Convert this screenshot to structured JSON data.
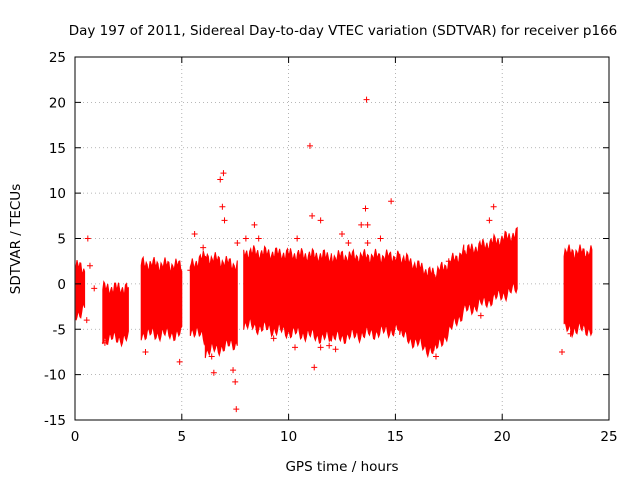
{
  "chart_data": {
    "type": "scatter",
    "title": "Day 197 of 2011, Sidereal Day-to-day VTEC variation (SDTVAR) for receiver p166",
    "xlabel": "GPS time / hours",
    "ylabel": "SDTVAR / TECUs",
    "xlim": [
      0,
      25
    ],
    "ylim": [
      -15,
      25
    ],
    "xticks": [
      0,
      5,
      10,
      15,
      20,
      25
    ],
    "yticks": [
      -15,
      -10,
      -5,
      0,
      5,
      10,
      15,
      20,
      25
    ],
    "xtick_labels": [
      "0",
      "5",
      "10",
      "15",
      "20",
      "25"
    ],
    "ytick_labels": [
      "-15",
      "-10",
      "-5",
      "0",
      "5",
      "10",
      "15",
      "20",
      "25"
    ],
    "grid": true,
    "marker": "+",
    "color": "#ff0000",
    "series": [
      {
        "name": "SDTVAR",
        "bands": [
          {
            "x": [
              0.05,
              0.45
            ],
            "low": [
              -3.5,
              -2.5
            ],
            "high": [
              2.0,
              1.5
            ]
          },
          {
            "x": [
              1.3,
              2.5
            ],
            "low": [
              -6.0,
              -6.0
            ],
            "high": [
              -0.5,
              -0.5
            ]
          },
          {
            "x": [
              3.1,
              5.0
            ],
            "low": [
              -5.5,
              -5.5
            ],
            "high": [
              2.2,
              2.0
            ]
          },
          {
            "x": [
              5.4,
              6.1
            ],
            "low": [
              -5.0,
              -6.0
            ],
            "high": [
              2.0,
              3.0
            ]
          },
          {
            "x": [
              6.1,
              7.6
            ],
            "low": [
              -7.5,
              -6.5
            ],
            "high": [
              3.0,
              2.0
            ]
          },
          {
            "x": [
              7.9,
              12.0
            ],
            "low": [
              -4.5,
              -6.0
            ],
            "high": [
              3.5,
              3.0
            ]
          },
          {
            "x": [
              12.0,
              15.2
            ],
            "low": [
              -6.0,
              -5.0
            ],
            "high": [
              3.0,
              3.0
            ]
          },
          {
            "x": [
              15.2,
              16.8
            ],
            "low": [
              -5.5,
              -7.5
            ],
            "high": [
              3.0,
              1.0
            ]
          },
          {
            "x": [
              16.8,
              18.2
            ],
            "low": [
              -7.5,
              -3.0
            ],
            "high": [
              1.0,
              3.5
            ]
          },
          {
            "x": [
              18.2,
              20.7
            ],
            "low": [
              -3.0,
              -0.5
            ],
            "high": [
              3.5,
              5.5
            ]
          },
          {
            "x": [
              22.9,
              24.2
            ],
            "low": [
              -5.0,
              -5.0
            ],
            "high": [
              3.5,
              3.5
            ]
          }
        ],
        "outliers": [
          {
            "x": 0.6,
            "y": 5.0
          },
          {
            "x": 0.7,
            "y": 2.0
          },
          {
            "x": 0.9,
            "y": -0.5
          },
          {
            "x": 0.55,
            "y": -4.0
          },
          {
            "x": 1.4,
            "y": -6.5
          },
          {
            "x": 3.3,
            "y": -7.5
          },
          {
            "x": 4.9,
            "y": -8.6
          },
          {
            "x": 5.4,
            "y": 1.5
          },
          {
            "x": 5.6,
            "y": 5.5
          },
          {
            "x": 6.0,
            "y": 4.0
          },
          {
            "x": 6.4,
            "y": -8.0
          },
          {
            "x": 6.5,
            "y": -9.8
          },
          {
            "x": 6.8,
            "y": 11.5
          },
          {
            "x": 6.95,
            "y": 12.2
          },
          {
            "x": 6.9,
            "y": 8.5
          },
          {
            "x": 7.0,
            "y": 7.0
          },
          {
            "x": 7.4,
            "y": -9.5
          },
          {
            "x": 7.5,
            "y": -10.8
          },
          {
            "x": 7.55,
            "y": -13.8
          },
          {
            "x": 7.6,
            "y": 4.5
          },
          {
            "x": 8.0,
            "y": 5.0
          },
          {
            "x": 8.4,
            "y": 6.5
          },
          {
            "x": 8.6,
            "y": 5.0
          },
          {
            "x": 9.3,
            "y": -6.0
          },
          {
            "x": 10.4,
            "y": 5.0
          },
          {
            "x": 10.3,
            "y": -7.0
          },
          {
            "x": 11.0,
            "y": 15.2
          },
          {
            "x": 11.1,
            "y": 7.5
          },
          {
            "x": 11.2,
            "y": -9.2
          },
          {
            "x": 11.5,
            "y": 7.0
          },
          {
            "x": 11.5,
            "y": -7.0
          },
          {
            "x": 11.9,
            "y": -6.8
          },
          {
            "x": 12.2,
            "y": -7.2
          },
          {
            "x": 12.5,
            "y": 5.5
          },
          {
            "x": 12.8,
            "y": 4.5
          },
          {
            "x": 13.4,
            "y": 6.5
          },
          {
            "x": 13.65,
            "y": 20.3
          },
          {
            "x": 13.6,
            "y": 8.3
          },
          {
            "x": 13.7,
            "y": 6.5
          },
          {
            "x": 13.7,
            "y": 4.5
          },
          {
            "x": 14.8,
            "y": 9.1
          },
          {
            "x": 14.3,
            "y": 5.0
          },
          {
            "x": 16.9,
            "y": -8.0
          },
          {
            "x": 17.2,
            "y": -5.5
          },
          {
            "x": 17.5,
            "y": 2.5
          },
          {
            "x": 18.3,
            "y": -2.0
          },
          {
            "x": 19.0,
            "y": -3.5
          },
          {
            "x": 19.6,
            "y": 8.5
          },
          {
            "x": 19.4,
            "y": 7.0
          },
          {
            "x": 22.8,
            "y": -7.5
          },
          {
            "x": 23.2,
            "y": -5.5
          },
          {
            "x": 23.9,
            "y": -1.0
          },
          {
            "x": 24.0,
            "y": 3.0
          }
        ]
      }
    ]
  }
}
